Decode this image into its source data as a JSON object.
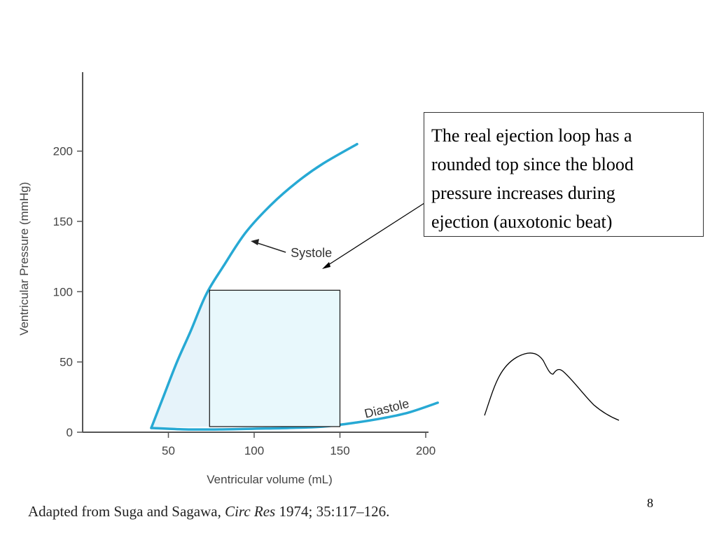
{
  "callout": {
    "lines": [
      "The real ejection loop has a",
      "rounded top since the blood",
      "pressure increases during",
      "ejection (auxotonic beat)"
    ]
  },
  "citation": {
    "before": "Adapted from Suga and Sagawa, ",
    "journal": "Circ Res",
    "after": " 1974; 35:117–126."
  },
  "page_number": "8",
  "colors": {
    "curve": "#27a9d4",
    "loop_fill": "#e6f3fa",
    "box_fill": "#e8f8fc",
    "axis": "#555555"
  },
  "chart_data": {
    "type": "line",
    "xlabel": "Ventricular volume (mL)",
    "ylabel": "Ventricular Pressure (mmHg)",
    "xlim": [
      0,
      200
    ],
    "ylim": [
      0,
      225
    ],
    "x_ticks": [
      {
        "v": 50,
        "label": "50"
      },
      {
        "v": 100,
        "label": "100"
      },
      {
        "v": 150,
        "label": "150"
      },
      {
        "v": 200,
        "label": "200"
      }
    ],
    "y_ticks": [
      {
        "v": 0,
        "label": "0"
      },
      {
        "v": 50,
        "label": "50"
      },
      {
        "v": 100,
        "label": "100"
      },
      {
        "v": 150,
        "label": "150"
      },
      {
        "v": 200,
        "label": "200"
      }
    ],
    "series": [
      {
        "name": "Systole",
        "x": [
          40,
          47,
          55,
          63,
          72,
          82,
          95,
          110,
          125,
          140,
          160
        ],
        "y": [
          3,
          25,
          50,
          72,
          98,
          118,
          142,
          162,
          178,
          191,
          205
        ]
      },
      {
        "name": "Diastole",
        "x": [
          40,
          60,
          80,
          100,
          120,
          140,
          160,
          175,
          190,
          207
        ],
        "y": [
          3,
          2,
          2,
          2.5,
          3,
          4,
          7,
          10,
          14,
          21
        ]
      }
    ],
    "loop": {
      "x_min": 74,
      "x_max": 150,
      "y_min": 4,
      "y_max": 101
    },
    "annotations": [
      "Systole",
      "Diastole"
    ]
  }
}
